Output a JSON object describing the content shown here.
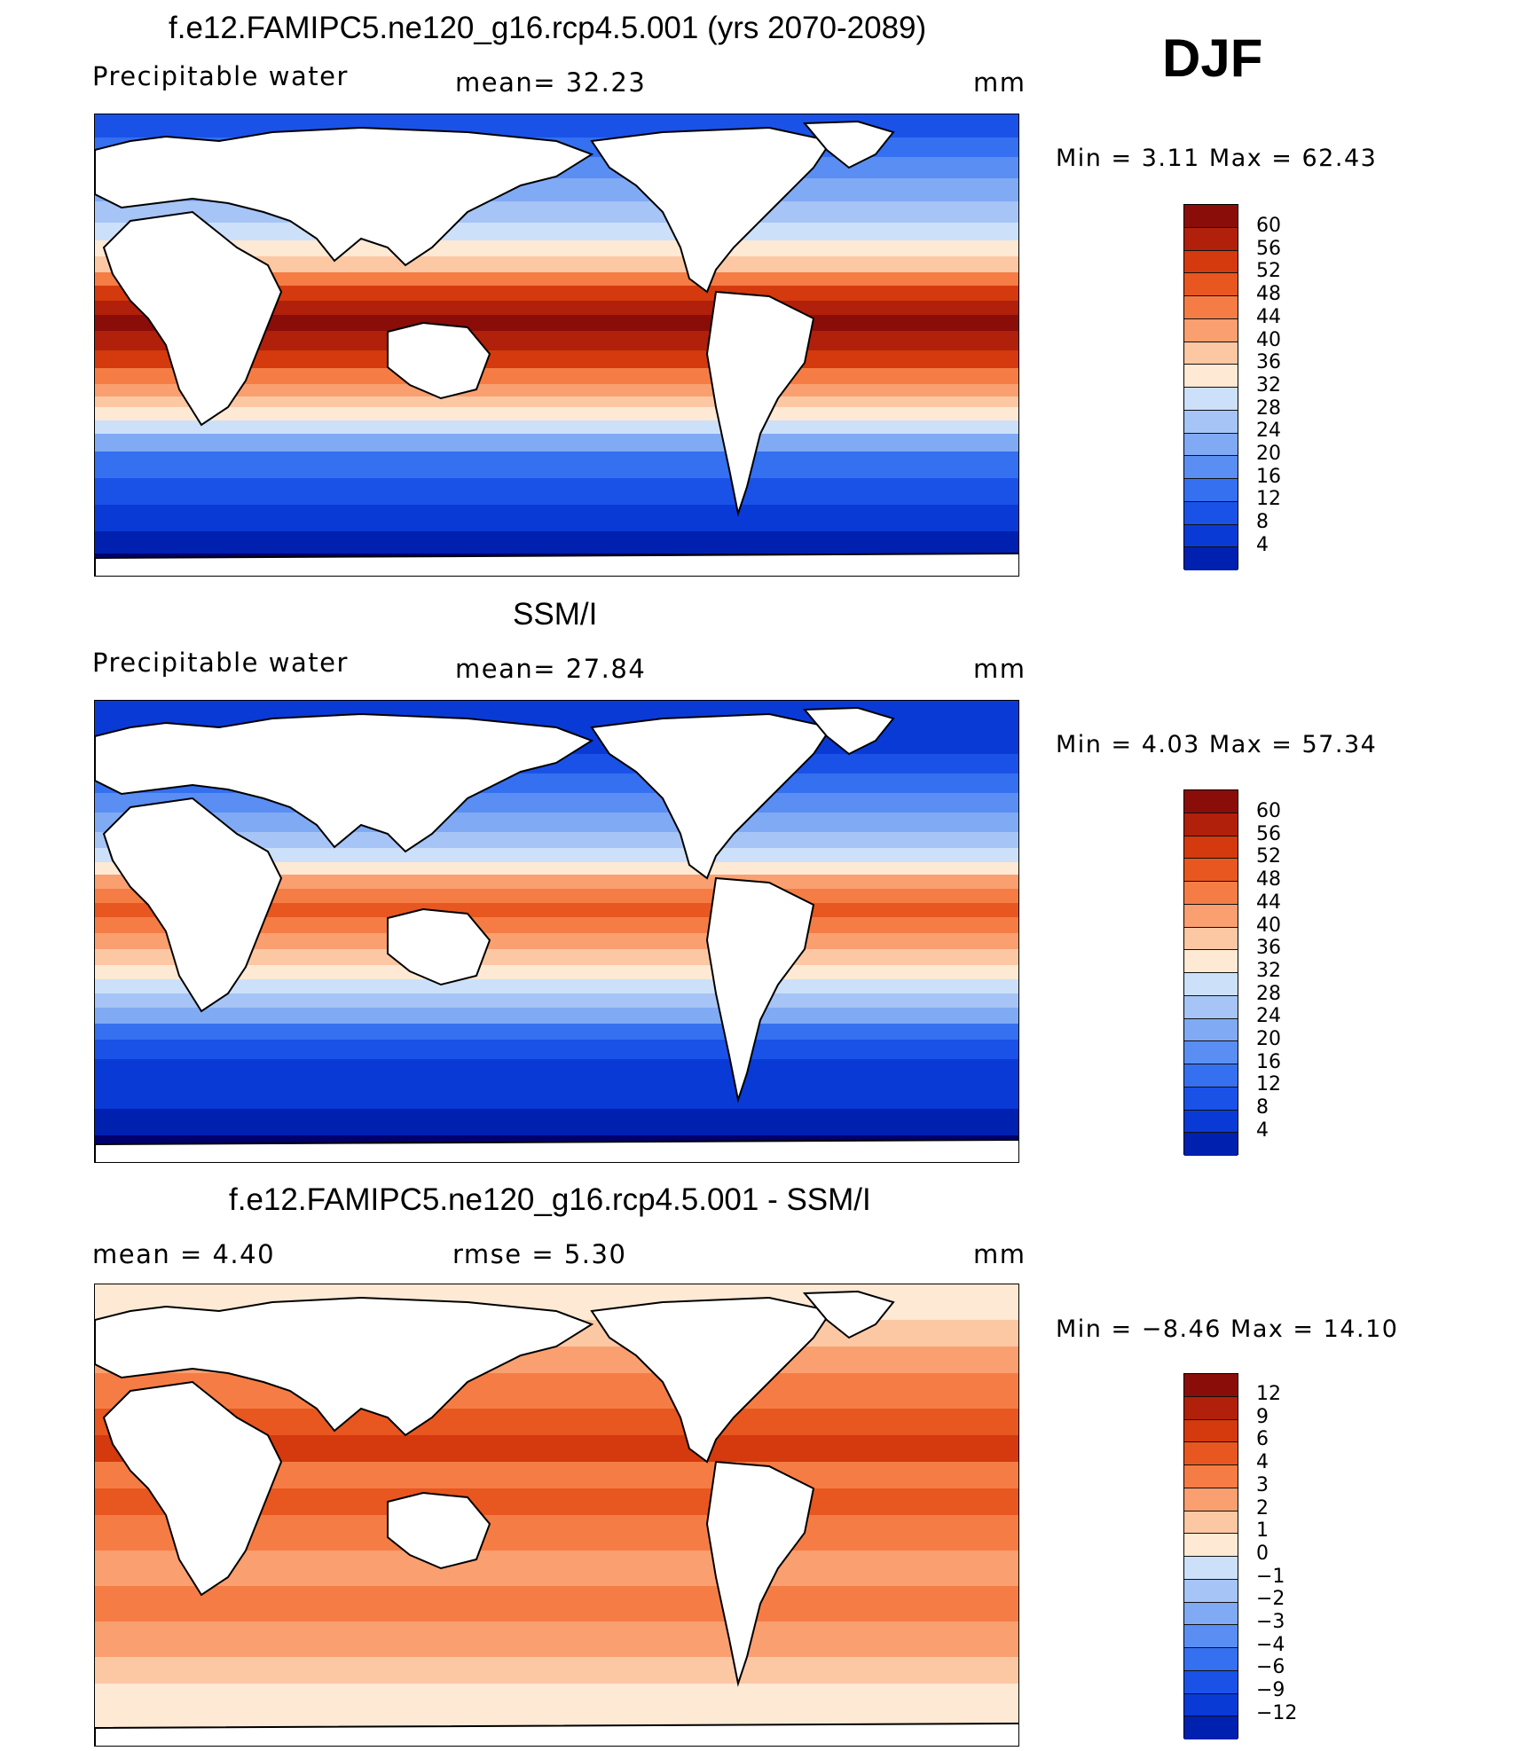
{
  "season": "DJF",
  "colors": {
    "abs": [
      "#00006e",
      "#0020b0",
      "#0a3ad6",
      "#1a52e8",
      "#3470f0",
      "#5a8ef2",
      "#80aaf4",
      "#a6c4f6",
      "#cce0fa",
      "#fde9d4",
      "#fcc8a4",
      "#fa9f70",
      "#f57d45",
      "#e8571f",
      "#d43a0d",
      "#b0200a",
      "#8a0d0a"
    ],
    "diff": [
      "#00006e",
      "#0020b0",
      "#0a3ad6",
      "#1a52e8",
      "#3470f0",
      "#5a8ef2",
      "#80aaf4",
      "#a6c4f6",
      "#cce0fa",
      "#fde9d4",
      "#fcc8a4",
      "#fa9f70",
      "#f57d45",
      "#e8571f",
      "#d43a0d",
      "#b0200a",
      "#8a0d0a"
    ]
  },
  "panels": [
    {
      "title": "f.e12.FAMIPC5.ne120_g16.rcp4.5.001 (yrs 2070-2089)",
      "left_label": "Precipitable  water",
      "mid_label": "mean=   32.23",
      "units": "mm",
      "minmax": "Min  =     3.11  Max  =    62.43",
      "field_mean": 32.23,
      "colorbar_labels": [
        "60",
        "56",
        "52",
        "48",
        "44",
        "40",
        "36",
        "32",
        "28",
        "24",
        "20",
        "16",
        "12",
        "8",
        "4"
      ]
    },
    {
      "title": "SSM/I",
      "left_label": "Precipitable  water",
      "mid_label": "mean=   27.84",
      "units": "mm",
      "minmax": "Min  =     4.03  Max  =    57.34",
      "field_mean": 27.84,
      "colorbar_labels": [
        "60",
        "56",
        "52",
        "48",
        "44",
        "40",
        "36",
        "32",
        "28",
        "24",
        "20",
        "16",
        "12",
        "8",
        "4"
      ]
    },
    {
      "title": "f.e12.FAMIPC5.ne120_g16.rcp4.5.001 - SSM/I",
      "left_label": "mean  =     4.40",
      "mid_label": "rmse  =     5.30",
      "units": "mm",
      "minmax": "Min  =   −8.46  Max  =    14.10",
      "field_mean": 4.4,
      "colorbar_labels": [
        "12",
        "9",
        "6",
        "4",
        "3",
        "2",
        "1",
        "0",
        "−1",
        "−2",
        "−3",
        "−4",
        "−6",
        "−9",
        "−12"
      ]
    }
  ]
}
